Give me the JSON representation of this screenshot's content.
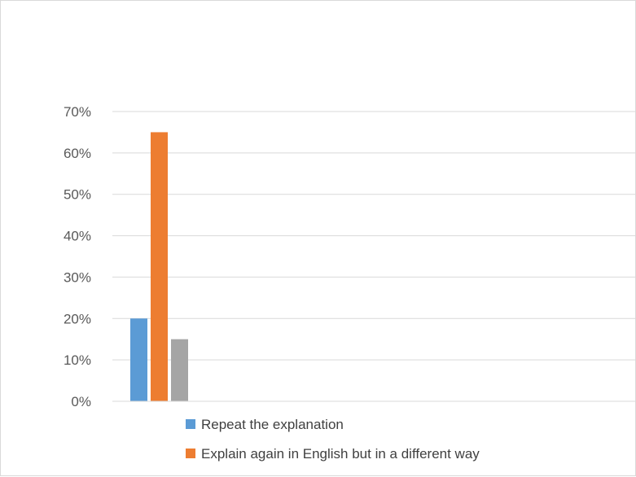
{
  "chart_data": {
    "type": "bar",
    "title": "",
    "xlabel": "",
    "ylabel": "",
    "ylim": [
      0,
      0.7
    ],
    "y_ticks": [
      "0%",
      "10%",
      "20%",
      "30%",
      "40%",
      "50%",
      "60%",
      "70%"
    ],
    "grid": true,
    "legend_position": "bottom",
    "categories": [
      ""
    ],
    "series": [
      {
        "name": "Repeat the explanation",
        "values": [
          0.2
        ],
        "color": "#5b9bd5"
      },
      {
        "name": "Explain again in English but  in a different way",
        "values": [
          0.65
        ],
        "color": "#ed7d31"
      },
      {
        "name": "",
        "values": [
          0.15
        ],
        "color": "#a5a5a5"
      }
    ]
  }
}
